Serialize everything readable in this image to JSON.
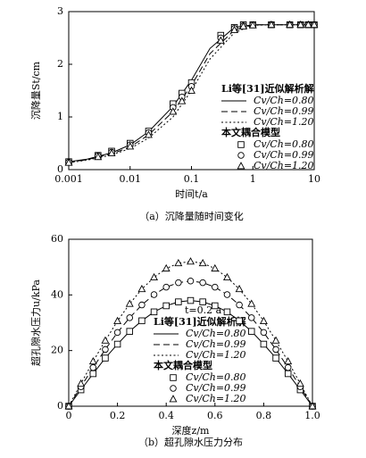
{
  "chart_data": [
    {
      "type": "line",
      "xlog": true,
      "xlabel": "时间t/a",
      "ylabel": "沉降量St/cm",
      "caption": "（a）沉降量随时间变化",
      "xlim": [
        0.001,
        10
      ],
      "xticks": [
        0.001,
        0.01,
        0.1,
        1,
        10
      ],
      "ylim": [
        0,
        3
      ],
      "yticks": [
        0,
        1,
        2,
        3
      ],
      "groups": [
        {
          "title": "Li等[31]近似解析解",
          "series": [
            {
              "name": "Cv/Ch=0.80",
              "color": "#000",
              "dash": "solid",
              "x": [
                0.001,
                0.002,
                0.005,
                0.01,
                0.02,
                0.05,
                0.1,
                0.2,
                0.5,
                1,
                2,
                5,
                10
              ],
              "values": [
                0.15,
                0.2,
                0.32,
                0.47,
                0.72,
                1.2,
                1.7,
                2.3,
                2.7,
                2.75,
                2.75,
                2.75,
                2.75
              ]
            },
            {
              "name": "Cv/Ch=0.99",
              "color": "#000",
              "dash": "dashed",
              "x": [
                0.001,
                0.002,
                0.005,
                0.01,
                0.02,
                0.05,
                0.1,
                0.2,
                0.5,
                1,
                2,
                5,
                10
              ],
              "values": [
                0.14,
                0.19,
                0.3,
                0.43,
                0.66,
                1.1,
                1.6,
                2.2,
                2.65,
                2.75,
                2.75,
                2.75,
                2.75
              ]
            },
            {
              "name": "Cv/Ch=1.20",
              "color": "#000",
              "dash": "dotted",
              "x": [
                0.001,
                0.002,
                0.005,
                0.01,
                0.02,
                0.05,
                0.1,
                0.2,
                0.5,
                1,
                2,
                5,
                10
              ],
              "values": [
                0.13,
                0.18,
                0.28,
                0.4,
                0.6,
                1.0,
                1.5,
                2.1,
                2.6,
                2.74,
                2.75,
                2.75,
                2.75
              ]
            }
          ]
        },
        {
          "title": "本文耦合模型",
          "series": [
            {
              "name": "Cv/Ch=0.80",
              "color": "#000",
              "marker": "square",
              "x": [
                0.001,
                0.003,
                0.005,
                0.01,
                0.02,
                0.05,
                0.07,
                0.1,
                0.3,
                0.5,
                0.7,
                1,
                2,
                4,
                6,
                8,
                10
              ],
              "values": [
                0.15,
                0.27,
                0.35,
                0.5,
                0.73,
                1.25,
                1.45,
                1.65,
                2.55,
                2.7,
                2.75,
                2.75,
                2.75,
                2.75,
                2.75,
                2.75,
                2.75
              ]
            },
            {
              "name": "Cv/Ch=0.99",
              "color": "#000",
              "marker": "circle",
              "x": [
                0.001,
                0.003,
                0.005,
                0.01,
                0.02,
                0.05,
                0.07,
                0.1,
                0.3,
                0.5,
                0.7,
                1,
                2,
                4,
                6,
                8,
                10
              ],
              "values": [
                0.14,
                0.26,
                0.33,
                0.47,
                0.7,
                1.18,
                1.38,
                1.58,
                2.5,
                2.68,
                2.73,
                2.75,
                2.75,
                2.75,
                2.75,
                2.75,
                2.75
              ]
            },
            {
              "name": "Cv/Ch=1.20",
              "color": "#000",
              "marker": "triangle",
              "x": [
                0.001,
                0.003,
                0.005,
                0.01,
                0.02,
                0.05,
                0.07,
                0.1,
                0.3,
                0.5,
                0.7,
                1,
                2,
                4,
                6,
                8,
                10
              ],
              "values": [
                0.13,
                0.24,
                0.31,
                0.44,
                0.66,
                1.1,
                1.3,
                1.5,
                2.45,
                2.65,
                2.72,
                2.74,
                2.75,
                2.75,
                2.75,
                2.75,
                2.75
              ]
            }
          ]
        }
      ]
    },
    {
      "type": "line",
      "xlog": false,
      "xlabel": "深度z/m",
      "ylabel": "超孔隙水压力u/kPa",
      "caption": "（b）超孔隙水压力分布",
      "annotation": "t=0.2 a",
      "xlim": [
        0,
        1
      ],
      "xticks": [
        0,
        0.2,
        0.4,
        0.6,
        0.8,
        {
          "value": 1,
          "label": "1.0"
        }
      ],
      "ylim": [
        0,
        60
      ],
      "yticks": [
        0,
        20,
        40,
        60
      ],
      "groups": [
        {
          "title": "Li等[31]近似解析解",
          "series": [
            {
              "name": "Cv/Ch=0.80",
              "color": "#000",
              "dash": "solid",
              "x": [
                0,
                0.05,
                0.1,
                0.15,
                0.2,
                0.25,
                0.3,
                0.35,
                0.4,
                0.45,
                0.5,
                0.55,
                0.6,
                0.65,
                0.7,
                0.75,
                0.8,
                0.85,
                0.9,
                0.95,
                1
              ],
              "values": [
                0,
                5.9,
                11.7,
                17.3,
                22.3,
                26.9,
                30.7,
                33.9,
                36.1,
                37.5,
                38,
                37.5,
                36.1,
                33.9,
                30.7,
                26.9,
                22.3,
                17.3,
                11.7,
                5.9,
                0
              ]
            },
            {
              "name": "Cv/Ch=0.99",
              "color": "#000",
              "dash": "dashed",
              "x": [
                0,
                0.05,
                0.1,
                0.15,
                0.2,
                0.25,
                0.3,
                0.35,
                0.4,
                0.45,
                0.5,
                0.55,
                0.6,
                0.65,
                0.7,
                0.75,
                0.8,
                0.85,
                0.9,
                0.95,
                1
              ],
              "values": [
                0,
                7.0,
                13.9,
                20.4,
                26.5,
                31.8,
                36.4,
                40.1,
                42.8,
                44.4,
                45,
                44.4,
                42.8,
                40.1,
                36.4,
                31.8,
                26.5,
                20.4,
                13.9,
                7.0,
                0
              ]
            },
            {
              "name": "Cv/Ch=1.20",
              "color": "#000",
              "dash": "dotted",
              "x": [
                0,
                0.05,
                0.1,
                0.15,
                0.2,
                0.25,
                0.3,
                0.35,
                0.4,
                0.45,
                0.5,
                0.55,
                0.6,
                0.65,
                0.7,
                0.75,
                0.8,
                0.85,
                0.9,
                0.95,
                1
              ],
              "values": [
                0,
                8.1,
                16.1,
                23.6,
                30.6,
                36.8,
                42.1,
                46.3,
                49.5,
                51.4,
                52,
                51.4,
                49.5,
                46.3,
                42.1,
                36.8,
                30.6,
                23.6,
                16.1,
                8.1,
                0
              ]
            }
          ]
        },
        {
          "title": "本文耦合模型",
          "series": [
            {
              "name": "Cv/Ch=0.80",
              "color": "#000",
              "marker": "square",
              "x": [
                0,
                0.05,
                0.1,
                0.15,
                0.2,
                0.25,
                0.3,
                0.35,
                0.4,
                0.45,
                0.5,
                0.55,
                0.6,
                0.65,
                0.7,
                0.75,
                0.8,
                0.85,
                0.9,
                0.95,
                1
              ],
              "values": [
                0,
                5.9,
                11.7,
                17.3,
                22.3,
                26.9,
                30.7,
                33.9,
                36.1,
                37.5,
                38,
                37.5,
                36.1,
                33.9,
                30.7,
                26.9,
                22.3,
                17.3,
                11.7,
                5.9,
                0
              ]
            },
            {
              "name": "Cv/Ch=0.99",
              "color": "#000",
              "marker": "circle",
              "x": [
                0,
                0.05,
                0.1,
                0.15,
                0.2,
                0.25,
                0.3,
                0.35,
                0.4,
                0.45,
                0.5,
                0.55,
                0.6,
                0.65,
                0.7,
                0.75,
                0.8,
                0.85,
                0.9,
                0.95,
                1
              ],
              "values": [
                0,
                7.0,
                13.9,
                20.4,
                26.5,
                31.8,
                36.4,
                40.1,
                42.8,
                44.4,
                45,
                44.4,
                42.8,
                40.1,
                36.4,
                31.8,
                26.5,
                20.4,
                13.9,
                7.0,
                0
              ]
            },
            {
              "name": "Cv/Ch=1.20",
              "color": "#000",
              "marker": "triangle",
              "x": [
                0,
                0.05,
                0.1,
                0.15,
                0.2,
                0.25,
                0.3,
                0.35,
                0.4,
                0.45,
                0.5,
                0.55,
                0.6,
                0.65,
                0.7,
                0.75,
                0.8,
                0.85,
                0.9,
                0.95,
                1
              ],
              "values": [
                0,
                8.1,
                16.1,
                23.6,
                30.6,
                36.8,
                42.1,
                46.3,
                49.5,
                51.4,
                52,
                51.4,
                49.5,
                46.3,
                42.1,
                36.8,
                30.6,
                23.6,
                16.1,
                8.1,
                0
              ]
            }
          ]
        }
      ]
    }
  ]
}
